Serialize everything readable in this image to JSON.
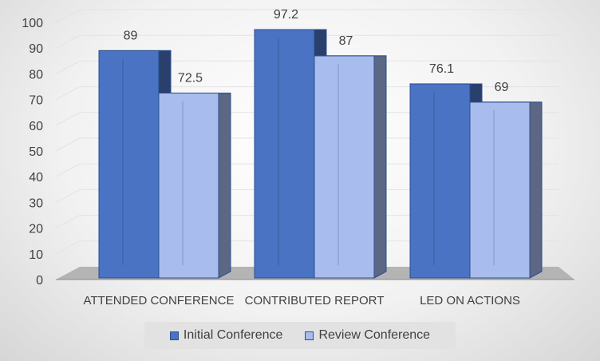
{
  "chart_data": {
    "type": "bar",
    "categories": [
      "ATTENDED CONFERENCE",
      "CONTRIBUTED REPORT",
      "LED ON ACTIONS"
    ],
    "series": [
      {
        "name": "Initial Conference",
        "values": [
          89,
          97.2,
          76.1
        ],
        "color": "#4a73c4"
      },
      {
        "name": "Review Conference",
        "values": [
          72.5,
          87,
          69
        ],
        "color": "#a8bcee"
      }
    ],
    "data_labels": [
      [
        "89",
        "97.2",
        "76.1"
      ],
      [
        "72.5",
        "87",
        "69"
      ]
    ],
    "y_ticks": [
      "0",
      "10",
      "20",
      "30",
      "40",
      "50",
      "60",
      "70",
      "80",
      "90",
      "100"
    ],
    "ylim": [
      0,
      100
    ],
    "grid": true,
    "style": "3d-clustered-column",
    "legend_position": "bottom",
    "title": "",
    "xlabel": "",
    "ylabel": ""
  }
}
